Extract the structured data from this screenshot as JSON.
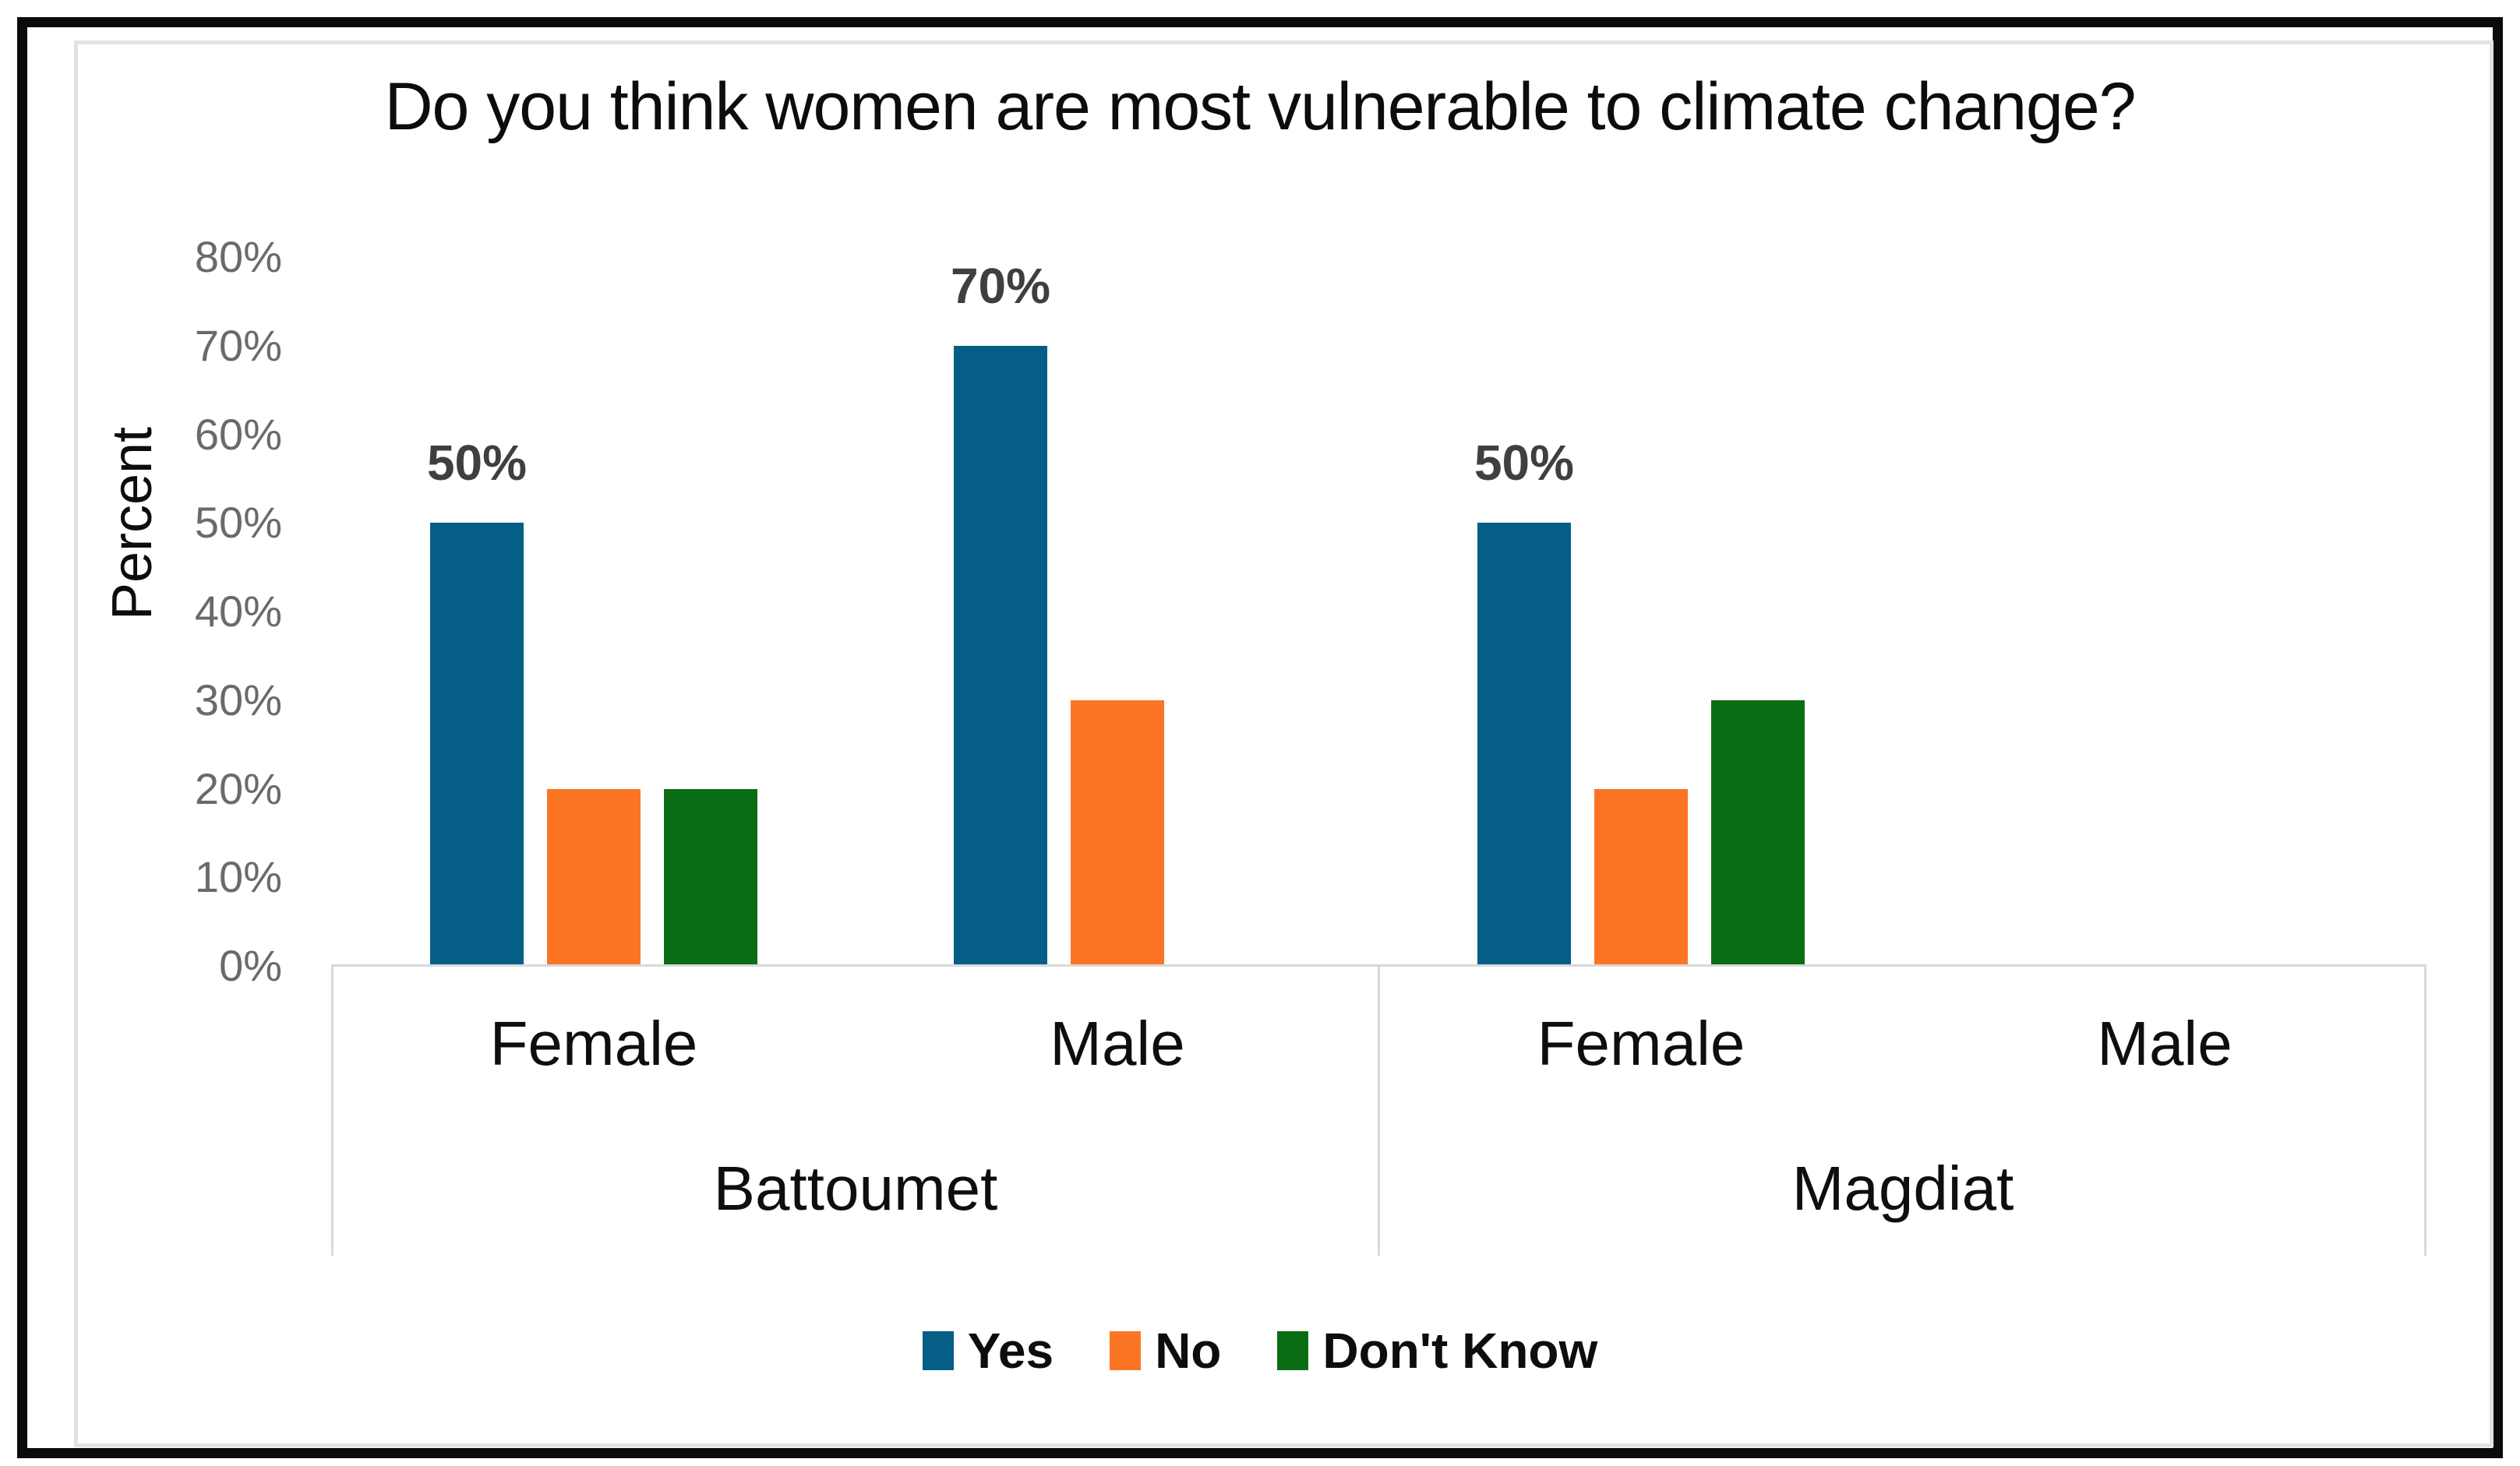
{
  "chart_data": {
    "type": "bar",
    "title": "Do you think women are most vulnerable to climate change?",
    "xlabel": "",
    "ylabel": "Percent",
    "ylim": [
      0,
      80
    ],
    "ytick_step": 10,
    "ytick_suffix": "%",
    "grid": false,
    "legend_position": "bottom",
    "groups": [
      {
        "label": "Battoumet",
        "categories": [
          "Female",
          "Male"
        ]
      },
      {
        "label": "Magdiat",
        "categories": [
          "Female",
          "Male"
        ]
      }
    ],
    "series": [
      {
        "name": "Yes",
        "color": "#055e86",
        "values": [
          50,
          70,
          50,
          null
        ],
        "data_labels": [
          "50%",
          "70%",
          "50%",
          null
        ]
      },
      {
        "name": "No",
        "color": "#fb7524",
        "values": [
          20,
          30,
          20,
          null
        ],
        "data_labels": [
          null,
          null,
          null,
          null
        ]
      },
      {
        "name": "Don't Know",
        "color": "#0a6d14",
        "values": [
          20,
          null,
          30,
          null
        ],
        "data_labels": [
          null,
          null,
          null,
          null
        ]
      }
    ]
  },
  "colors": {
    "frame_border": "#0a0a0a",
    "chart_border": "#e2e2e2",
    "axis_line": "#d9d9d9",
    "tick_text": "#6a6a6a",
    "data_label_text": "#3f3f3f",
    "title_text": "#0c0c0c"
  }
}
